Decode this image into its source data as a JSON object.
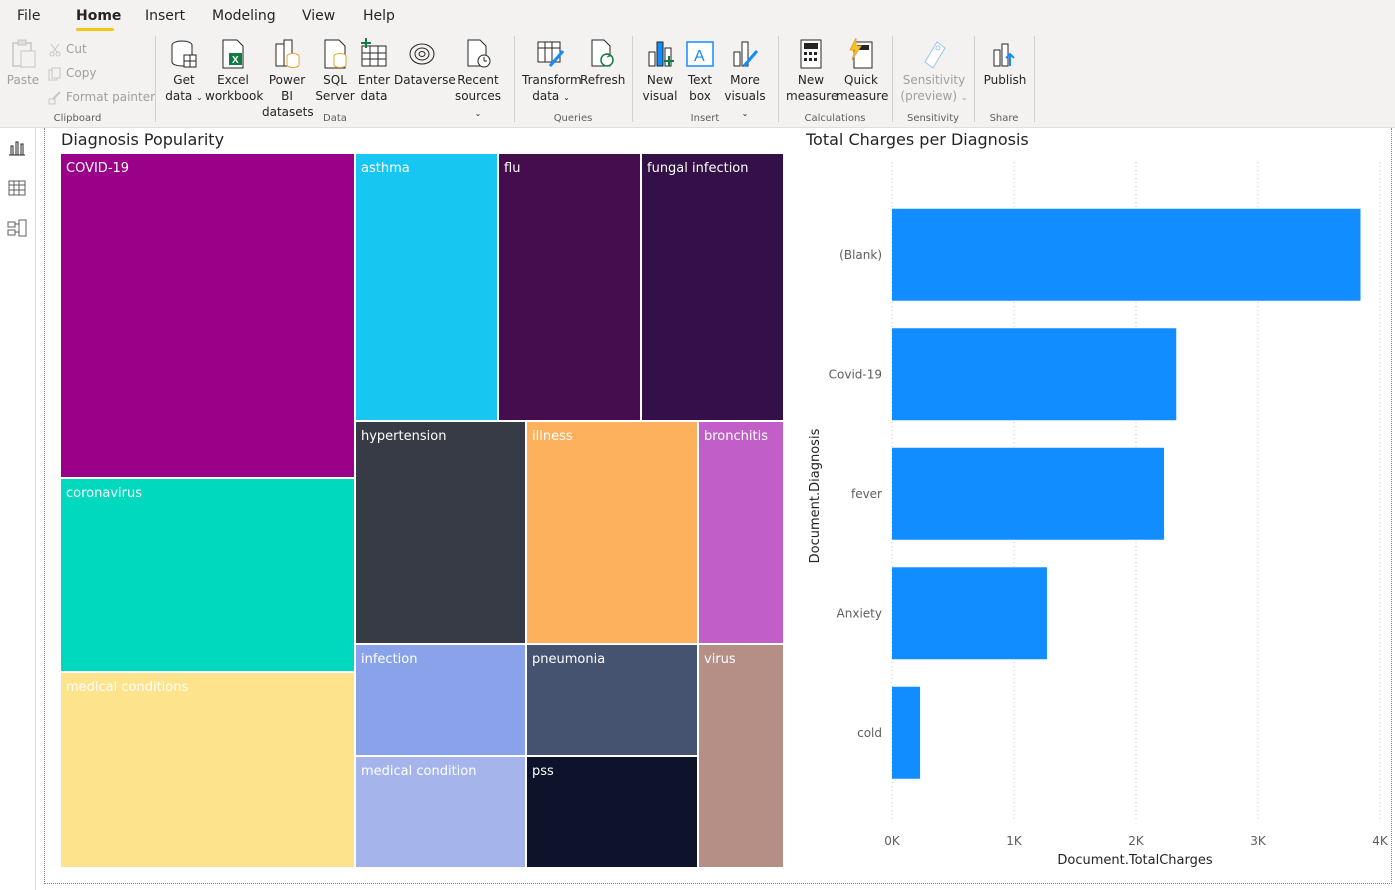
{
  "menu": {
    "items": [
      "File",
      "Home",
      "Insert",
      "Modeling",
      "View",
      "Help"
    ],
    "active": "Home"
  },
  "ribbon": {
    "clipboard": {
      "paste": "Paste",
      "cut": "Cut",
      "copy": "Copy",
      "format_painter": "Format painter",
      "label": "Clipboard"
    },
    "data": {
      "get_data": [
        "Get",
        "data"
      ],
      "excel": [
        "Excel",
        "workbook"
      ],
      "powerbi": [
        "Power BI",
        "datasets"
      ],
      "sql": [
        "SQL",
        "Server"
      ],
      "enter": [
        "Enter",
        "data"
      ],
      "dataverse": "Dataverse",
      "recent": [
        "Recent",
        "sources"
      ],
      "label": "Data"
    },
    "queries": {
      "transform": [
        "Transform",
        "data"
      ],
      "refresh": "Refresh",
      "label": "Queries"
    },
    "insert": {
      "new_visual": [
        "New",
        "visual"
      ],
      "text_box": [
        "Text",
        "box"
      ],
      "more_visuals": [
        "More",
        "visuals"
      ],
      "label": "Insert"
    },
    "calculations": {
      "new_measure": [
        "New",
        "measure"
      ],
      "quick_measure": [
        "Quick",
        "measure"
      ],
      "label": "Calculations"
    },
    "sensitivity": {
      "sensitivity": [
        "Sensitivity",
        "(preview)"
      ],
      "label": "Sensitivity"
    },
    "share": {
      "publish": "Publish",
      "label": "Share"
    }
  },
  "colors": {
    "accent": "#f2c811",
    "bar": "#118dff"
  },
  "treemap": {
    "title": "Diagnosis Popularity",
    "tiles": [
      {
        "label": "COVID-19",
        "color": "#9b0089"
      },
      {
        "label": "coronavirus",
        "color": "#01d9be"
      },
      {
        "label": "medical conditions",
        "color": "#fde38b"
      },
      {
        "label": "asthma",
        "color": "#18c6f2"
      },
      {
        "label": "flu",
        "color": "#460d4e"
      },
      {
        "label": "fungal infection",
        "color": "#341048"
      },
      {
        "label": "hypertension",
        "color": "#373b46"
      },
      {
        "label": "illness",
        "color": "#feb15d"
      },
      {
        "label": "bronchitis",
        "color": "#c15ec8"
      },
      {
        "label": "infection",
        "color": "#8aa2ea"
      },
      {
        "label": "pneumonia",
        "color": "#455270"
      },
      {
        "label": "virus",
        "color": "#b58f86"
      },
      {
        "label": "medical condition",
        "color": "#a5b5ec"
      },
      {
        "label": "pss",
        "color": "#0e132c"
      }
    ]
  },
  "chart_data": {
    "type": "bar",
    "orientation": "horizontal",
    "title": "Total Charges per Diagnosis",
    "categories": [
      "(Blank)",
      "Covid-19",
      "fever",
      "Anxiety",
      "cold"
    ],
    "values": [
      3840,
      2330,
      2230,
      1270,
      230
    ],
    "xlabel": "Document.TotalCharges",
    "ylabel": "Document.Diagnosis",
    "xlim": [
      0,
      4000
    ],
    "xticks": [
      "0K",
      "1K",
      "2K",
      "3K",
      "4K"
    ],
    "grid": "vertical dotted"
  }
}
